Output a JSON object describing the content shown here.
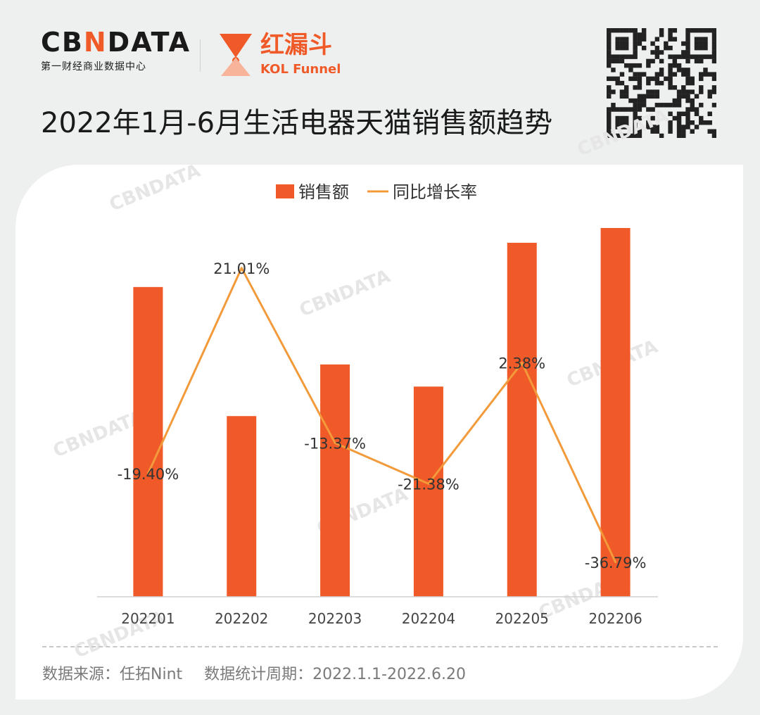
{
  "header": {
    "cbdata_logo": "CBNDATA",
    "cbdata_sub": "第一财经商业数据中心",
    "kol_cn": "红漏斗",
    "kol_en": "KOL Funnel",
    "title": "2022年1月-6月生活电器天猫销售额趋势"
  },
  "footer": {
    "source": "数据来源：任拓Nint",
    "period": "数据统计周期：2022.1.1-2022.6.20"
  },
  "watermark": "CBNDATA",
  "colors": {
    "bar": "#f05a28",
    "line": "#f39a3a",
    "brand": "#f05a28"
  },
  "chart_data": {
    "type": "bar",
    "categories": [
      "202201",
      "202202",
      "202203",
      "202204",
      "202205",
      "202206"
    ],
    "series": [
      {
        "name": "销售额",
        "type": "bar",
        "values": [
          84,
          49,
          63,
          57,
          96,
          100
        ]
      },
      {
        "name": "同比增长率",
        "type": "line",
        "values": [
          -19.4,
          21.01,
          -13.37,
          -21.38,
          2.38,
          -36.79
        ],
        "labels": [
          "-19.40%",
          "21.01%",
          "-13.37%",
          "-21.38%",
          "2.38%",
          "-36.79%"
        ]
      }
    ],
    "bar_ylim": [
      0,
      100
    ],
    "line_ylim": [
      -40,
      25
    ],
    "legend": "top-center",
    "grid": false
  }
}
